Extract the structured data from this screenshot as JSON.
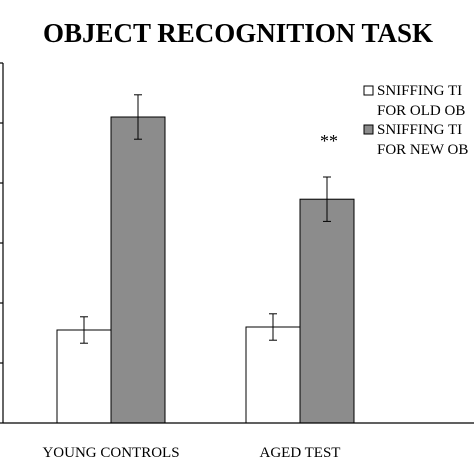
{
  "chart_data": {
    "type": "bar",
    "title": "OBJECT RECOGNITION TASK",
    "categories": [
      "YOUNG CONTROLS",
      "AGED TEST"
    ],
    "series": [
      {
        "name": "SNIFFING TIME FOR OLD OBJECT",
        "legend_lines": [
          "SNIFFING TI",
          "FOR OLD OB"
        ],
        "color": "#ffffff",
        "values": [
          1.55,
          1.6
        ],
        "errors": [
          0.22,
          0.22
        ]
      },
      {
        "name": "SNIFFING TIME FOR NEW OBJECT",
        "legend_lines": [
          "SNIFFING TI",
          "FOR NEW OB"
        ],
        "color": "#8c8c8c",
        "values": [
          5.1,
          3.73
        ],
        "errors": [
          0.37,
          0.37
        ]
      }
    ],
    "annotations": [
      {
        "text": "**",
        "category": "AGED TEST"
      }
    ],
    "ylim": [
      0,
      6
    ],
    "yticks": [
      0,
      1,
      2,
      3,
      4,
      5,
      6
    ],
    "xlabel": "",
    "ylabel": "",
    "grid": false,
    "legend_position": "right"
  }
}
